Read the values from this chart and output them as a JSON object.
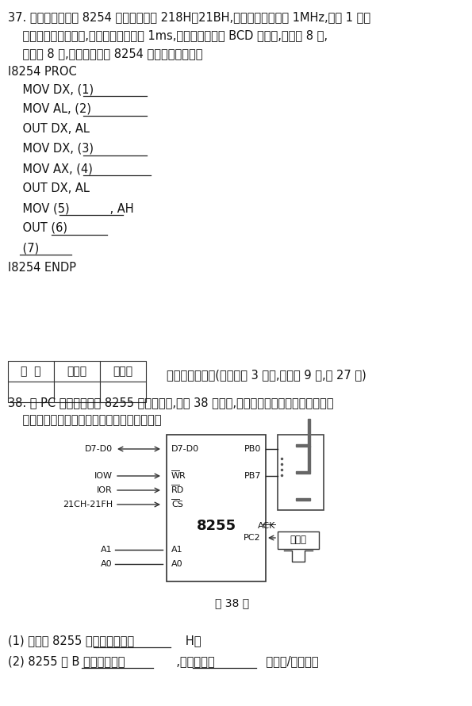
{
  "q37_line1": "37. 设系统外扩一片 8254 的端口地址为 218H～21BH,若输入时钟频率为 1MHz,要求 1 号计",
  "q37_line2": "    数器工作在方波方式,输出信号的周期为 1ms,要求计数初值用 BCD 码方式,先写低 8 位,",
  "q37_line3": "    后写高 8 位,请完成下列对 8254 初始化的程序段。",
  "proc_label": "I8254 PROC",
  "endp_label": "I8254 ENDP",
  "code_lines": [
    "    MOV DX, (1)",
    "    MOV AL, (2)",
    "    OUT DX, AL",
    "    MOV DX, (3)",
    "    MOV AX, (4)",
    "    OUT DX, AL",
    "    MOV (5)           , AH",
    "    OUT (6)",
    "    (7)"
  ],
  "table_headers": [
    "得  分",
    "评卷人",
    "复查人"
  ],
  "section_title": "五、综合应用题(本大题共 3 小题,每小题 9 分,共 27 分)",
  "q38_line1": "38. 设 PC 机外扩了一片 8255 及显示电路,如题 38 图所示,单脉冲电路产生的负脉冲模拟信",
  "q38_line2": "    号控制数据传输的过程。根据要求回答问题。",
  "fig_caption": "题 38 图",
  "q38_sub1": "(1) 该外扩 8255 的控制口地址为              H；",
  "q38_sub2": "(2) 8255 的 B 口工作在方式              ,传输方向是              （输出/输入）；",
  "chip_label": "8255",
  "left_labels": [
    "D7-D0",
    "IOW",
    "IOR",
    "21CH-21FH",
    "A1",
    "A0"
  ],
  "left_pin_labels": [
    "D7-D0",
    "WR",
    "RD",
    "CS",
    "A1",
    "A0"
  ],
  "right_pin_labels": [
    "PB0",
    "PB7",
    "PC2"
  ],
  "overline_pins": [
    "WR",
    "RD",
    "CS"
  ],
  "pulse_label": "单脉冲",
  "ack_label": "ACK"
}
